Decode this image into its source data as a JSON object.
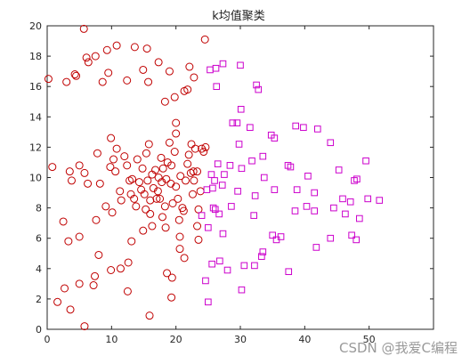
{
  "chart_data": {
    "type": "scatter",
    "title": "k均值聚类",
    "xlabel": "",
    "ylabel": "",
    "xlim": [
      0,
      60
    ],
    "ylim": [
      0,
      20
    ],
    "xticks": [
      "0",
      "10",
      "20",
      "30",
      "40",
      "50"
    ],
    "yticks": [
      "0",
      "2",
      "4",
      "6",
      "8",
      "10",
      "12",
      "14",
      "16",
      "18",
      "20"
    ],
    "grid": false,
    "series": [
      {
        "marker": "circle",
        "color": "#c00000",
        "points": [
          [
            0.2,
            16.5
          ],
          [
            3.0,
            16.3
          ],
          [
            4.3,
            16.8
          ],
          [
            4.5,
            16.7
          ],
          [
            5.7,
            19.8
          ],
          [
            6.1,
            17.9
          ],
          [
            6.4,
            17.6
          ],
          [
            7.5,
            18.0
          ],
          [
            8.6,
            16.3
          ],
          [
            9.3,
            18.4
          ],
          [
            9.5,
            16.9
          ],
          [
            10.8,
            18.7
          ],
          [
            12.4,
            16.4
          ],
          [
            13.6,
            18.6
          ],
          [
            14.9,
            17.1
          ],
          [
            15.5,
            18.5
          ],
          [
            15.7,
            16.3
          ],
          [
            17.3,
            17.6
          ],
          [
            18.3,
            15.0
          ],
          [
            19.0,
            17.0
          ],
          [
            19.8,
            15.3
          ],
          [
            21.3,
            15.7
          ],
          [
            21.8,
            15.8
          ],
          [
            22.1,
            17.3
          ],
          [
            22.8,
            16.6
          ],
          [
            24.5,
            19.1
          ],
          [
            20.0,
            13.6
          ],
          [
            20.0,
            12.9
          ],
          [
            0.8,
            10.7
          ],
          [
            3.5,
            10.4
          ],
          [
            3.8,
            9.8
          ],
          [
            5.0,
            10.8
          ],
          [
            5.8,
            10.3
          ],
          [
            6.3,
            9.6
          ],
          [
            7.8,
            11.6
          ],
          [
            8.2,
            9.6
          ],
          [
            9.1,
            8.1
          ],
          [
            9.8,
            10.7
          ],
          [
            9.9,
            12.6
          ],
          [
            10.3,
            11.2
          ],
          [
            10.6,
            10.4
          ],
          [
            10.8,
            11.9
          ],
          [
            11.3,
            9.1
          ],
          [
            11.5,
            8.5
          ],
          [
            12.0,
            11.4
          ],
          [
            12.4,
            10.8
          ],
          [
            12.8,
            9.8
          ],
          [
            13.0,
            8.9
          ],
          [
            13.2,
            9.9
          ],
          [
            13.5,
            8.6
          ],
          [
            13.8,
            8.1
          ],
          [
            14.0,
            11.2
          ],
          [
            14.3,
            9.7
          ],
          [
            14.6,
            9.2
          ],
          [
            14.8,
            10.6
          ],
          [
            15.1,
            8.9
          ],
          [
            15.3,
            7.9
          ],
          [
            15.4,
            11.6
          ],
          [
            15.6,
            9.8
          ],
          [
            15.8,
            12.2
          ],
          [
            16.0,
            8.5
          ],
          [
            16.3,
            10.2
          ],
          [
            16.5,
            9.3
          ],
          [
            16.8,
            10.5
          ],
          [
            17.0,
            8.6
          ],
          [
            17.2,
            9.1
          ],
          [
            17.3,
            10.0
          ],
          [
            17.5,
            8.6
          ],
          [
            17.7,
            11.3
          ],
          [
            17.8,
            9.7
          ],
          [
            18.0,
            10.6
          ],
          [
            18.3,
            8.1
          ],
          [
            18.5,
            9.9
          ],
          [
            18.7,
            11.0
          ],
          [
            19.0,
            12.3
          ],
          [
            19.2,
            9.6
          ],
          [
            19.3,
            10.8
          ],
          [
            19.5,
            8.3
          ],
          [
            19.8,
            11.7
          ],
          [
            20.0,
            9.4
          ],
          [
            20.3,
            8.6
          ],
          [
            20.5,
            7.2
          ],
          [
            20.7,
            10.1
          ],
          [
            21.0,
            8.0
          ],
          [
            21.2,
            7.8
          ],
          [
            21.5,
            9.8
          ],
          [
            21.8,
            10.9
          ],
          [
            22.0,
            11.5
          ],
          [
            22.3,
            10.3
          ],
          [
            22.6,
            8.9
          ],
          [
            22.8,
            9.8
          ],
          [
            23.0,
            11.9
          ],
          [
            23.3,
            10.4
          ],
          [
            23.5,
            7.9
          ],
          [
            23.8,
            9.1
          ],
          [
            24.0,
            11.9
          ],
          [
            24.3,
            11.7
          ],
          [
            24.6,
            12.0
          ],
          [
            22.4,
            12.2
          ],
          [
            22.7,
            10.4
          ],
          [
            16.0,
            7.6
          ],
          [
            17.9,
            7.4
          ],
          [
            2.5,
            7.1
          ],
          [
            3.3,
            5.8
          ],
          [
            5.0,
            6.1
          ],
          [
            7.6,
            7.2
          ],
          [
            8.0,
            4.9
          ],
          [
            10.1,
            7.7
          ],
          [
            13.1,
            5.8
          ],
          [
            14.9,
            6.5
          ],
          [
            16.3,
            6.8
          ],
          [
            18.4,
            6.7
          ],
          [
            20.6,
            6.1
          ],
          [
            23.3,
            6.8
          ],
          [
            23.5,
            5.9
          ],
          [
            20.6,
            5.3
          ],
          [
            21.3,
            4.7
          ],
          [
            12.6,
            4.4
          ],
          [
            11.4,
            4.0
          ],
          [
            9.9,
            3.9
          ],
          [
            7.4,
            3.5
          ],
          [
            7.2,
            2.9
          ],
          [
            5.0,
            3.0
          ],
          [
            2.7,
            2.7
          ],
          [
            1.6,
            1.8
          ],
          [
            3.6,
            1.3
          ],
          [
            12.5,
            2.5
          ],
          [
            15.9,
            0.9
          ],
          [
            18.6,
            3.7
          ],
          [
            19.4,
            3.4
          ],
          [
            19.3,
            2.1
          ],
          [
            5.8,
            0.2
          ]
        ]
      },
      {
        "marker": "square",
        "color": "#cc00cc",
        "points": [
          [
            25.3,
            17.1
          ],
          [
            26.2,
            17.2
          ],
          [
            27.3,
            17.5
          ],
          [
            30.0,
            17.4
          ],
          [
            26.3,
            16.0
          ],
          [
            32.5,
            16.1
          ],
          [
            32.8,
            15.8
          ],
          [
            30.1,
            14.5
          ],
          [
            29.5,
            13.6
          ],
          [
            28.8,
            13.6
          ],
          [
            31.5,
            13.3
          ],
          [
            34.8,
            12.8
          ],
          [
            35.3,
            12.6
          ],
          [
            29.8,
            12.2
          ],
          [
            38.6,
            13.4
          ],
          [
            39.8,
            13.3
          ],
          [
            42.0,
            13.2
          ],
          [
            44.0,
            12.3
          ],
          [
            33.5,
            11.4
          ],
          [
            31.8,
            11.1
          ],
          [
            26.5,
            10.9
          ],
          [
            28.4,
            10.8
          ],
          [
            30.2,
            10.6
          ],
          [
            37.4,
            10.8
          ],
          [
            37.8,
            10.7
          ],
          [
            45.3,
            10.5
          ],
          [
            49.5,
            11.1
          ],
          [
            25.5,
            10.2
          ],
          [
            27.5,
            10.2
          ],
          [
            26.0,
            9.8
          ],
          [
            33.7,
            10.0
          ],
          [
            40.5,
            10.1
          ],
          [
            47.7,
            9.8
          ],
          [
            48.1,
            9.9
          ],
          [
            24.8,
            9.2
          ],
          [
            25.7,
            9.3
          ],
          [
            27.2,
            9.5
          ],
          [
            29.6,
            9.1
          ],
          [
            35.3,
            9.2
          ],
          [
            38.8,
            9.2
          ],
          [
            41.5,
            9.0
          ],
          [
            45.9,
            8.6
          ],
          [
            47.1,
            8.4
          ],
          [
            49.8,
            8.6
          ],
          [
            51.6,
            8.5
          ],
          [
            25.8,
            8.0
          ],
          [
            26.1,
            7.9
          ],
          [
            28.6,
            8.1
          ],
          [
            32.3,
            8.8
          ],
          [
            38.5,
            7.8
          ],
          [
            40.3,
            8.1
          ],
          [
            41.5,
            7.8
          ],
          [
            44.5,
            8.0
          ],
          [
            46.3,
            7.6
          ],
          [
            48.5,
            7.3
          ],
          [
            26.7,
            7.6
          ],
          [
            32.1,
            7.5
          ],
          [
            24.0,
            7.5
          ],
          [
            25.0,
            6.7
          ],
          [
            27.3,
            6.3
          ],
          [
            35.6,
            5.9
          ],
          [
            35.0,
            6.2
          ],
          [
            36.3,
            6.1
          ],
          [
            41.8,
            5.4
          ],
          [
            44.0,
            6.0
          ],
          [
            47.3,
            6.2
          ],
          [
            48.0,
            5.9
          ],
          [
            33.5,
            5.1
          ],
          [
            33.3,
            4.8
          ],
          [
            30.6,
            4.2
          ],
          [
            28.0,
            3.9
          ],
          [
            26.8,
            4.5
          ],
          [
            25.6,
            4.3
          ],
          [
            32.2,
            4.2
          ],
          [
            37.5,
            3.8
          ],
          [
            24.6,
            3.2
          ],
          [
            30.2,
            2.6
          ],
          [
            25.0,
            1.8
          ]
        ]
      }
    ]
  },
  "watermark": "CSDN @我爱C编程"
}
